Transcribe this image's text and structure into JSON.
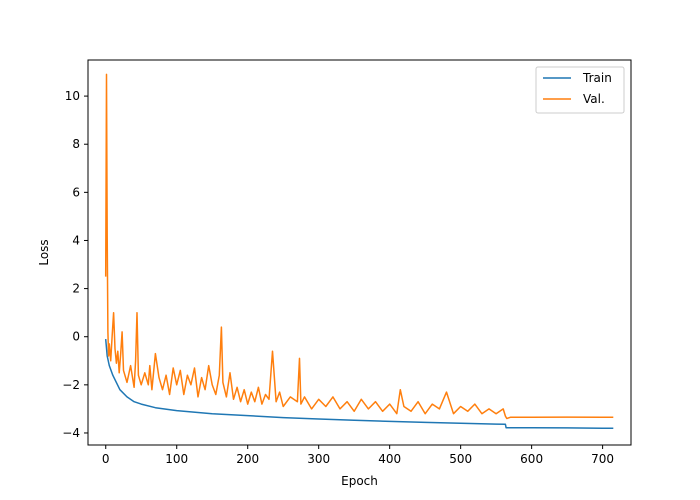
{
  "chart_data": {
    "type": "line",
    "title": "",
    "xlabel": "Epoch",
    "ylabel": "Loss",
    "xlim": [
      -25,
      740
    ],
    "ylim": [
      -4.5,
      11.5
    ],
    "xticks": [
      0,
      100,
      200,
      300,
      400,
      500,
      600,
      700
    ],
    "yticks": [
      -4,
      -2,
      0,
      2,
      4,
      6,
      8,
      10
    ],
    "grid": false,
    "legend": {
      "placement": "top-right",
      "entries": [
        "Train",
        "Val."
      ]
    },
    "series": [
      {
        "name": "Train",
        "color": "#1f77b4",
        "x": [
          0,
          2,
          5,
          10,
          20,
          30,
          40,
          50,
          70,
          100,
          150,
          200,
          250,
          300,
          350,
          400,
          450,
          500,
          550,
          563,
          564,
          600,
          650,
          700,
          715
        ],
        "y": [
          -0.1,
          -0.8,
          -1.2,
          -1.6,
          -2.2,
          -2.5,
          -2.7,
          -2.8,
          -2.95,
          -3.07,
          -3.2,
          -3.28,
          -3.36,
          -3.42,
          -3.47,
          -3.52,
          -3.56,
          -3.6,
          -3.63,
          -3.64,
          -3.78,
          -3.78,
          -3.79,
          -3.8,
          -3.8
        ]
      },
      {
        "name": "Val.",
        "color": "#ff7f0e",
        "x": [
          0,
          1,
          2,
          3,
          4,
          5,
          7,
          9,
          11,
          13,
          15,
          17,
          19,
          21,
          23,
          25,
          30,
          35,
          40,
          42,
          44,
          46,
          50,
          55,
          60,
          62,
          65,
          70,
          75,
          80,
          85,
          90,
          95,
          100,
          105,
          110,
          115,
          120,
          125,
          130,
          135,
          140,
          145,
          150,
          155,
          160,
          163,
          165,
          170,
          175,
          180,
          185,
          190,
          195,
          200,
          205,
          210,
          215,
          220,
          225,
          230,
          235,
          240,
          245,
          250,
          260,
          270,
          273,
          275,
          280,
          290,
          300,
          310,
          320,
          330,
          340,
          350,
          360,
          370,
          380,
          390,
          400,
          410,
          415,
          420,
          430,
          440,
          450,
          460,
          470,
          480,
          490,
          500,
          510,
          520,
          530,
          540,
          550,
          560,
          563,
          565,
          570,
          600,
          650,
          700,
          715
        ],
        "y": [
          2.5,
          10.9,
          4.2,
          0.2,
          -0.8,
          -0.3,
          -1.0,
          0.0,
          1.0,
          -0.5,
          -1.1,
          -0.6,
          -1.5,
          -0.7,
          0.2,
          -1.4,
          -1.9,
          -1.2,
          -2.1,
          -1.0,
          1.0,
          -1.6,
          -2.0,
          -1.5,
          -2.0,
          -1.2,
          -2.2,
          -0.7,
          -1.7,
          -2.2,
          -1.6,
          -2.4,
          -1.3,
          -2.0,
          -1.4,
          -2.4,
          -1.6,
          -2.0,
          -1.3,
          -2.5,
          -1.7,
          -2.2,
          -1.2,
          -2.0,
          -2.4,
          -1.6,
          0.4,
          -1.9,
          -2.5,
          -1.5,
          -2.6,
          -2.1,
          -2.7,
          -2.2,
          -2.8,
          -2.3,
          -2.7,
          -2.1,
          -2.8,
          -2.4,
          -2.6,
          -0.6,
          -2.7,
          -2.3,
          -2.9,
          -2.5,
          -2.7,
          -0.9,
          -2.8,
          -2.5,
          -3.0,
          -2.6,
          -2.9,
          -2.5,
          -3.0,
          -2.7,
          -3.1,
          -2.6,
          -3.0,
          -2.7,
          -3.1,
          -2.8,
          -3.2,
          -2.2,
          -2.9,
          -3.1,
          -2.7,
          -3.2,
          -2.8,
          -3.0,
          -2.3,
          -3.2,
          -2.9,
          -3.1,
          -2.8,
          -3.2,
          -3.0,
          -3.2,
          -3.0,
          -3.3,
          -3.4,
          -3.35,
          -3.35,
          -3.34,
          -3.35,
          -3.35
        ]
      }
    ]
  }
}
